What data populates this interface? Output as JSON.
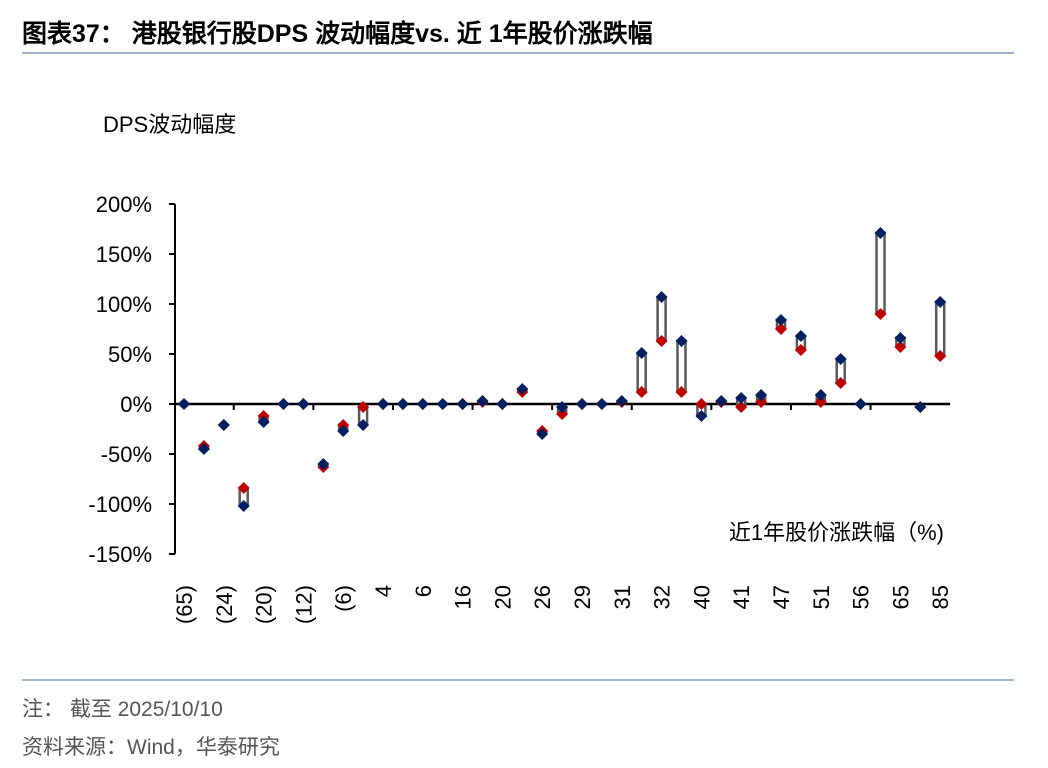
{
  "title": "图表37：  港股银行股DPS 波动幅度vs. 近 1年股价涨跌幅",
  "footer": {
    "note": "注： 截至 2025/10/10",
    "source": "资料来源：Wind，华泰研究"
  },
  "colors": {
    "series_a": "#002060",
    "series_b": "#c00000",
    "range_bar": "#595959",
    "rule": "#9fb3cc"
  },
  "chart_data": {
    "type": "scatter",
    "ylabel": "DPS波动幅度",
    "xlabel": "近1年股价涨跌幅（%)",
    "ylim": [
      -150,
      200
    ],
    "yticks": [
      -150,
      -100,
      -50,
      0,
      50,
      100,
      150,
      200
    ],
    "ytick_labels": [
      "-150%",
      "-100%",
      "-50%",
      "0%",
      "50%",
      "100%",
      "150%",
      "200%"
    ],
    "grid": false,
    "legend": "none",
    "categories": [
      "(65)",
      "",
      "(24)",
      "",
      "(20)",
      "",
      "(12)",
      "",
      "(6)",
      "",
      "4",
      "",
      "6",
      "",
      "16",
      "",
      "20",
      "",
      "26",
      "",
      "29",
      "",
      "31",
      "",
      "32",
      "",
      "40",
      "",
      "41",
      "",
      "47",
      "",
      "51",
      "",
      "56",
      "",
      "65",
      "",
      "85"
    ],
    "series": [
      {
        "marker": "diamond",
        "color": "#002060",
        "values": [
          0,
          -45,
          -21,
          -102,
          -18,
          0,
          0,
          -60,
          -27,
          -21,
          0,
          0,
          0,
          0,
          0,
          3,
          0,
          15,
          -30,
          -3,
          0,
          0,
          3,
          51,
          107,
          63,
          -12,
          3,
          6,
          9,
          84,
          68,
          9,
          45,
          0,
          171,
          66,
          -3,
          102
        ]
      },
      {
        "marker": "diamond",
        "color": "#c00000",
        "values": [
          0,
          -42,
          -21,
          -84,
          -12,
          0,
          0,
          -63,
          -21,
          -3,
          0,
          0,
          0,
          0,
          0,
          2,
          0,
          12,
          -27,
          -10,
          0,
          0,
          2,
          12,
          63,
          12,
          0,
          2,
          -3,
          2,
          75,
          54,
          2,
          21,
          0,
          90,
          57,
          -3,
          48
        ]
      }
    ]
  }
}
